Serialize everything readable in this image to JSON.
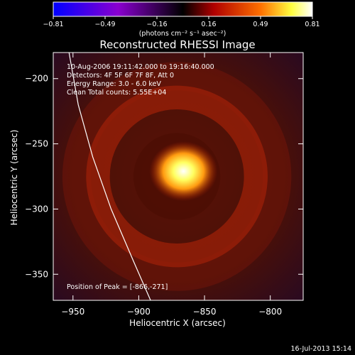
{
  "chart_data": {
    "type": "heatmap",
    "title": "Reconstructed RHESSI Image",
    "xlabel": "Heliocentric X (arcsec)",
    "ylabel": "Heliocentric Y (arcsec)",
    "xlim": [
      -965,
      -775
    ],
    "ylim": [
      -370,
      -180
    ],
    "x_ticks": [
      -950,
      -900,
      -850,
      -800
    ],
    "y_ticks": [
      -200,
      -250,
      -300,
      -350
    ],
    "x_tick_labels": [
      "−950",
      "−900",
      "−850",
      "−800"
    ],
    "y_tick_labels": [
      "−200",
      "−250",
      "−300",
      "−350"
    ],
    "colorbar": {
      "range": [
        -0.81,
        0.81
      ],
      "tick_labels": [
        "−0.81",
        "−0.49",
        "−0.16",
        "0.16",
        "0.49",
        "0.81"
      ],
      "unit_label": "(photons cm⁻² s⁻¹ asec⁻²)",
      "colors": [
        "#0000ff",
        "#8a00d0",
        "#000000",
        "#b00000",
        "#ff7000",
        "#ffff40",
        "#ffffff"
      ]
    },
    "info_lines": [
      "10-Aug-2006 19:11:42.000 to 19:16:40.000",
      "Detectors: 4F 5F 6F 7F 8F, Att 0",
      "Energy Range: 3.0 - 6.0 keV",
      "Clean     Total counts: 5.55E+04"
    ],
    "peak_label": "Position of Peak = [-866,-271]",
    "peak": {
      "x": -866,
      "y": -271,
      "value": 0.81
    },
    "ring": {
      "center_x": -871,
      "center_y": -275,
      "radius": 60,
      "width": 18,
      "value": 0.28
    },
    "limb": [
      [
        -953,
        -180
      ],
      [
        -946,
        -220
      ],
      [
        -935,
        -260
      ],
      [
        -921,
        -300
      ],
      [
        -904,
        -340
      ],
      [
        -891,
        -370
      ]
    ],
    "footer": "16-Jul-2013 15:14"
  }
}
